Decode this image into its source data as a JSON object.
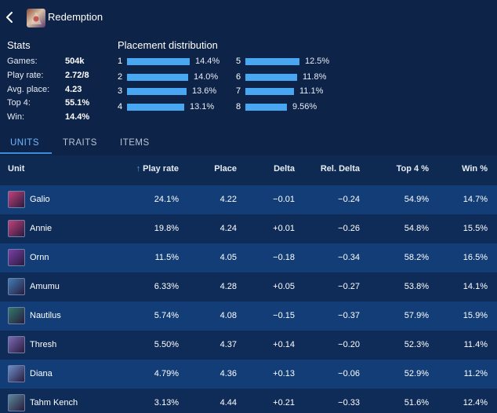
{
  "header": {
    "title": "Redemption",
    "back_icon": "chevron-left-icon",
    "item_icon": "redemption-item-icon"
  },
  "stats": {
    "title": "Stats",
    "rows": [
      {
        "label": "Games:",
        "value": "504k"
      },
      {
        "label": "Play rate:",
        "value": "2.72/8"
      },
      {
        "label": "Avg. place:",
        "value": "4.23"
      },
      {
        "label": "Top 4:",
        "value": "55.1%"
      },
      {
        "label": "Win:",
        "value": "14.4%"
      }
    ]
  },
  "placement": {
    "title": "Placement distribution",
    "bar_color": "#49a7f2",
    "rows": [
      {
        "place": "1",
        "pct": "14.4%",
        "value": 14.4
      },
      {
        "place": "2",
        "pct": "14.0%",
        "value": 14.0
      },
      {
        "place": "3",
        "pct": "13.6%",
        "value": 13.6
      },
      {
        "place": "4",
        "pct": "13.1%",
        "value": 13.1
      },
      {
        "place": "5",
        "pct": "12.5%",
        "value": 12.5
      },
      {
        "place": "6",
        "pct": "11.8%",
        "value": 11.8
      },
      {
        "place": "7",
        "pct": "11.1%",
        "value": 11.1
      },
      {
        "place": "8",
        "pct": "9.56%",
        "value": 9.56
      }
    ]
  },
  "tabs": [
    {
      "label": "UNITS",
      "active": true
    },
    {
      "label": "TRAITS",
      "active": false
    },
    {
      "label": "ITEMS",
      "active": false
    }
  ],
  "table": {
    "columns": [
      "Unit",
      "Play rate",
      "Place",
      "Delta",
      "Rel. Delta",
      "Top 4 %",
      "Win %"
    ],
    "sorted_column": "Play rate",
    "rows": [
      {
        "unit": "Galio",
        "play_rate": "24.1%",
        "place": "4.22",
        "delta": "−0.01",
        "rel_delta": "−0.24",
        "top4": "54.9%",
        "win": "14.7%",
        "color": "#c2417a"
      },
      {
        "unit": "Annie",
        "play_rate": "19.8%",
        "place": "4.24",
        "delta": "+0.01",
        "rel_delta": "−0.26",
        "top4": "54.8%",
        "win": "15.5%",
        "color": "#c2417a"
      },
      {
        "unit": "Ornn",
        "play_rate": "11.5%",
        "place": "4.05",
        "delta": "−0.18",
        "rel_delta": "−0.34",
        "top4": "58.2%",
        "win": "16.5%",
        "color": "#7b3fa6"
      },
      {
        "unit": "Amumu",
        "play_rate": "6.33%",
        "place": "4.28",
        "delta": "+0.05",
        "rel_delta": "−0.27",
        "top4": "53.8%",
        "win": "14.1%",
        "color": "#3e7fb5"
      },
      {
        "unit": "Nautilus",
        "play_rate": "5.74%",
        "place": "4.08",
        "delta": "−0.15",
        "rel_delta": "−0.37",
        "top4": "57.9%",
        "win": "15.9%",
        "color": "#2f7b6e"
      },
      {
        "unit": "Thresh",
        "play_rate": "5.50%",
        "place": "4.37",
        "delta": "+0.14",
        "rel_delta": "−0.20",
        "top4": "52.3%",
        "win": "11.4%",
        "color": "#7c6bb5"
      },
      {
        "unit": "Diana",
        "play_rate": "4.79%",
        "place": "4.36",
        "delta": "+0.13",
        "rel_delta": "−0.06",
        "top4": "52.9%",
        "win": "11.2%",
        "color": "#6b8fc9"
      },
      {
        "unit": "Tahm Kench",
        "play_rate": "3.13%",
        "place": "4.44",
        "delta": "+0.21",
        "rel_delta": "−0.33",
        "top4": "51.6%",
        "win": "12.4%",
        "color": "#5a8a9a"
      }
    ]
  }
}
